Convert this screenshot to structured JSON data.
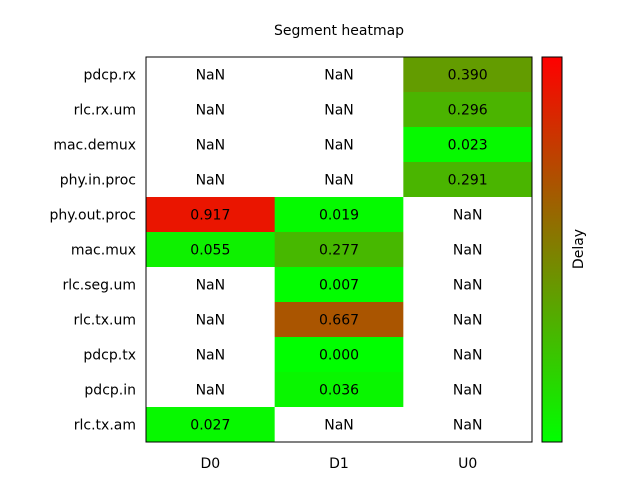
{
  "chart_data": {
    "type": "heatmap",
    "title": "Segment heatmap",
    "rows": [
      "pdcp.rx",
      "rlc.rx.um",
      "mac.demux",
      "phy.in.proc",
      "phy.out.proc",
      "mac.mux",
      "rlc.seg.um",
      "rlc.tx.um",
      "pdcp.tx",
      "pdcp.in",
      "rlc.tx.am"
    ],
    "columns": [
      "D0",
      "D1",
      "U0"
    ],
    "values": [
      [
        null,
        null,
        0.39
      ],
      [
        null,
        null,
        0.296
      ],
      [
        null,
        null,
        0.023
      ],
      [
        null,
        null,
        0.291
      ],
      [
        0.917,
        0.019,
        null
      ],
      [
        0.055,
        0.277,
        null
      ],
      [
        null,
        0.007,
        null
      ],
      [
        null,
        0.667,
        null
      ],
      [
        null,
        0.0,
        null
      ],
      [
        null,
        0.036,
        null
      ],
      [
        0.027,
        null,
        null
      ]
    ],
    "missing_label": "NaN",
    "value_format_decimals": 3,
    "colorbar": {
      "label": "Delay",
      "low_color": "#00ff00",
      "high_color": "#ff0000",
      "range": [
        0,
        1
      ]
    },
    "nan_color": "#ffffff"
  }
}
